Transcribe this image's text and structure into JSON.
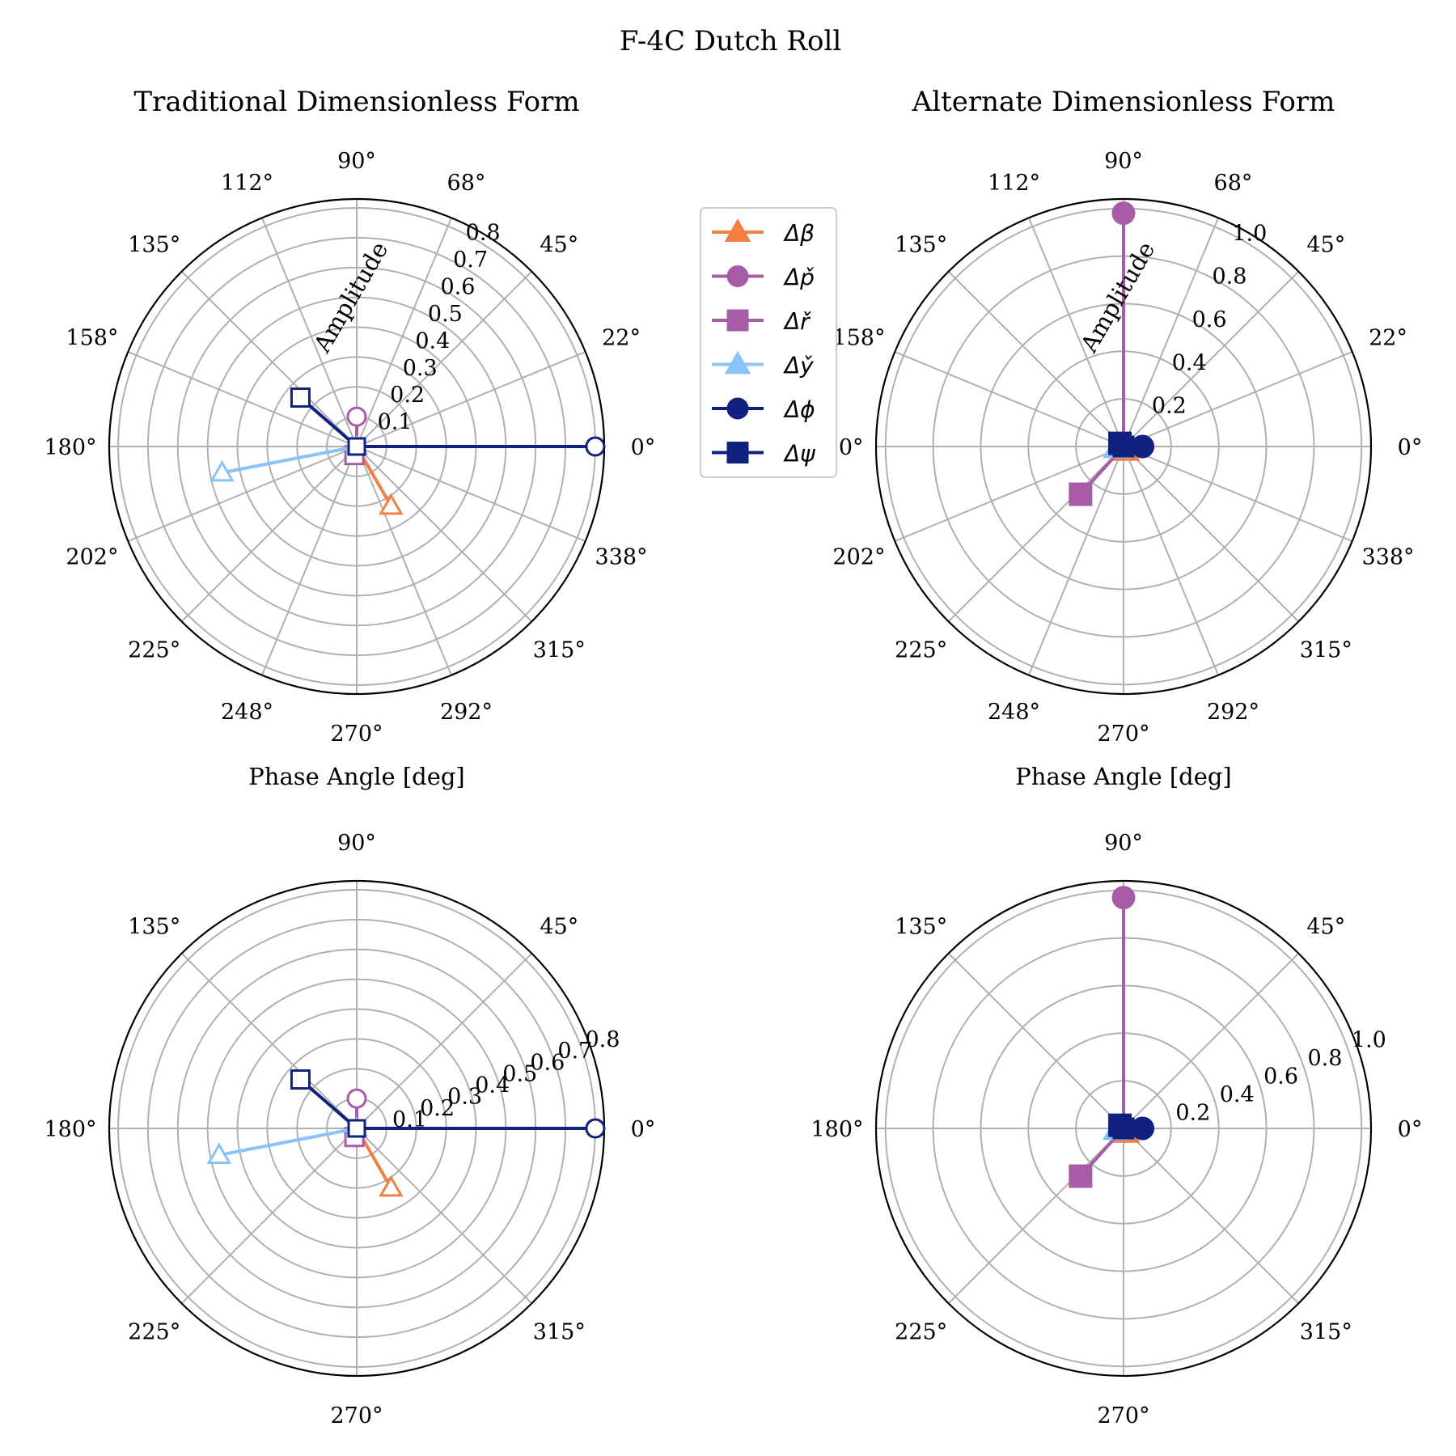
{
  "figure": {
    "title": "F-4C Dutch Roll",
    "legend": {
      "placement": "center-right of top-left panel",
      "entries": [
        {
          "label": "Δβ",
          "marker": "triangle",
          "color": "#F47F43"
        },
        {
          "label": "Δp̌",
          "marker": "circle",
          "color": "#A85CA8"
        },
        {
          "label": "Δř",
          "marker": "square",
          "color": "#A85CA8"
        },
        {
          "label": "Δy̌",
          "marker": "triangle",
          "color": "#89C3F8"
        },
        {
          "label": "Δϕ",
          "marker": "circle",
          "color": "#10217F"
        },
        {
          "label": "Δψ",
          "marker": "square",
          "color": "#10217F"
        }
      ]
    }
  },
  "chart_data": [
    {
      "type": "polar",
      "title": "Traditional Dimensionless Form",
      "xlabel": "Phase Angle [deg]",
      "ylabel": "Amplitude",
      "rlim": [
        0,
        0.83
      ],
      "rticks": [
        "0.1",
        "0.2",
        "0.3",
        "0.4",
        "0.5",
        "0.6",
        "0.7",
        "0.8"
      ],
      "rtick_values": [
        0.1,
        0.2,
        0.3,
        0.4,
        0.5,
        0.6,
        0.7,
        0.8
      ],
      "rlabel_angle_deg": 65,
      "angle_ticks_deg": [
        0,
        22.5,
        45,
        67.5,
        90,
        112.5,
        135,
        157.5,
        180,
        202.5,
        225,
        247.5,
        270,
        292.5,
        315,
        337.5
      ],
      "angle_tick_labels": [
        "0°",
        "22°",
        "45°",
        "68°",
        "90°",
        "112°",
        "135°",
        "158°",
        "180°",
        "202°",
        "225°",
        "248°",
        "270°",
        "292°",
        "315°",
        "338°"
      ],
      "grid": true,
      "marker_fill": "none",
      "series": [
        {
          "label": "Δβ",
          "marker": "triangle",
          "color": "#F47F43",
          "amplitude": 0.23,
          "phase_deg": 300
        },
        {
          "label": "Δp̌",
          "marker": "circle",
          "color": "#A85CA8",
          "amplitude": 0.1,
          "phase_deg": 90
        },
        {
          "label": "Δř",
          "marker": "square",
          "color": "#A85CA8",
          "amplitude": 0.03,
          "phase_deg": 255
        },
        {
          "label": "Δy̌",
          "marker": "triangle",
          "color": "#89C3F8",
          "amplitude": 0.46,
          "phase_deg": 191
        },
        {
          "label": "Δϕ",
          "marker": "circle",
          "color": "#10217F",
          "amplitude": 0.8,
          "phase_deg": 0
        },
        {
          "label": "Δψ",
          "marker": "square",
          "color": "#10217F",
          "amplitude": 0.25,
          "phase_deg": 139
        }
      ]
    },
    {
      "type": "polar",
      "title": "Alternate Dimensionless Form",
      "xlabel": "Phase Angle [deg]",
      "ylabel": "Amplitude",
      "rlim": [
        0,
        1.04
      ],
      "rticks": [
        "0.2",
        "0.4",
        "0.6",
        "0.8",
        "1.0"
      ],
      "rtick_values": [
        0.2,
        0.4,
        0.6,
        0.8,
        1.0
      ],
      "rlabel_angle_deg": 65,
      "angle_ticks_deg": [
        0,
        22.5,
        45,
        67.5,
        90,
        112.5,
        135,
        157.5,
        180,
        202.5,
        225,
        247.5,
        270,
        292.5,
        315,
        337.5
      ],
      "angle_tick_labels": [
        "0°",
        "22°",
        "45°",
        "68°",
        "90°",
        "112°",
        "135°",
        "158°",
        "180°",
        "202°",
        "225°",
        "248°",
        "270°",
        "292°",
        "315°",
        "338°"
      ],
      "grid": true,
      "marker_fill": "solid",
      "series": [
        {
          "label": "Δβ",
          "marker": "triangle",
          "color": "#F47F43",
          "amplitude": 0.02,
          "phase_deg": 300
        },
        {
          "label": "Δp̌",
          "marker": "circle",
          "color": "#A85CA8",
          "amplitude": 0.98,
          "phase_deg": 90
        },
        {
          "label": "Δř",
          "marker": "square",
          "color": "#A85CA8",
          "amplitude": 0.27,
          "phase_deg": 228
        },
        {
          "label": "Δy̌",
          "marker": "triangle",
          "color": "#89C3F8",
          "amplitude": 0.03,
          "phase_deg": 191
        },
        {
          "label": "Δϕ",
          "marker": "circle",
          "color": "#10217F",
          "amplitude": 0.08,
          "phase_deg": 0
        },
        {
          "label": "Δψ",
          "marker": "square",
          "color": "#10217F",
          "amplitude": 0.02,
          "phase_deg": 139
        }
      ]
    },
    {
      "type": "polar",
      "title": "",
      "xlabel": "",
      "ylabel": "",
      "rlim": [
        0,
        0.83
      ],
      "rticks": [
        "0.1",
        "0.2",
        "0.3",
        "0.4",
        "0.5",
        "0.6",
        "0.7",
        "0.8"
      ],
      "rtick_values": [
        0.1,
        0.2,
        0.3,
        0.4,
        0.5,
        0.6,
        0.7,
        0.8
      ],
      "rlabel_angle_deg": 22.5,
      "angle_ticks_deg": [
        0,
        45,
        90,
        135,
        180,
        225,
        270,
        315
      ],
      "angle_tick_labels": [
        "0°",
        "45°",
        "90°",
        "135°",
        "180°",
        "225°",
        "270°",
        "315°"
      ],
      "grid": true,
      "marker_fill": "none",
      "series": [
        {
          "label": "Δβ",
          "marker": "triangle",
          "color": "#F47F43",
          "amplitude": 0.23,
          "phase_deg": 300
        },
        {
          "label": "Δp̌",
          "marker": "circle",
          "color": "#A85CA8",
          "amplitude": 0.1,
          "phase_deg": 90
        },
        {
          "label": "Δř",
          "marker": "square",
          "color": "#A85CA8",
          "amplitude": 0.03,
          "phase_deg": 255
        },
        {
          "label": "Δy̌",
          "marker": "triangle",
          "color": "#89C3F8",
          "amplitude": 0.47,
          "phase_deg": 191
        },
        {
          "label": "Δϕ",
          "marker": "circle",
          "color": "#10217F",
          "amplitude": 0.8,
          "phase_deg": 0
        },
        {
          "label": "Δψ",
          "marker": "square",
          "color": "#10217F",
          "amplitude": 0.25,
          "phase_deg": 139
        }
      ]
    },
    {
      "type": "polar",
      "title": "",
      "xlabel": "",
      "ylabel": "",
      "rlim": [
        0,
        1.04
      ],
      "rticks": [
        "0.2",
        "0.4",
        "0.6",
        "0.8",
        "1.0"
      ],
      "rtick_values": [
        0.2,
        0.4,
        0.6,
        0.8,
        1.0
      ],
      "rlabel_angle_deg": 22.5,
      "angle_ticks_deg": [
        0,
        45,
        90,
        135,
        180,
        225,
        270,
        315
      ],
      "angle_tick_labels": [
        "0°",
        "45°",
        "90°",
        "135°",
        "180°",
        "225°",
        "270°",
        "315°"
      ],
      "grid": true,
      "marker_fill": "solid",
      "series": [
        {
          "label": "Δβ",
          "marker": "triangle",
          "color": "#F47F43",
          "amplitude": 0.02,
          "phase_deg": 300
        },
        {
          "label": "Δp̌",
          "marker": "circle",
          "color": "#A85CA8",
          "amplitude": 0.97,
          "phase_deg": 90
        },
        {
          "label": "Δř",
          "marker": "square",
          "color": "#A85CA8",
          "amplitude": 0.27,
          "phase_deg": 228
        },
        {
          "label": "Δy̌",
          "marker": "triangle",
          "color": "#89C3F8",
          "amplitude": 0.03,
          "phase_deg": 191
        },
        {
          "label": "Δϕ",
          "marker": "circle",
          "color": "#10217F",
          "amplitude": 0.08,
          "phase_deg": 0
        },
        {
          "label": "Δψ",
          "marker": "square",
          "color": "#10217F",
          "amplitude": 0.02,
          "phase_deg": 139
        }
      ]
    }
  ]
}
